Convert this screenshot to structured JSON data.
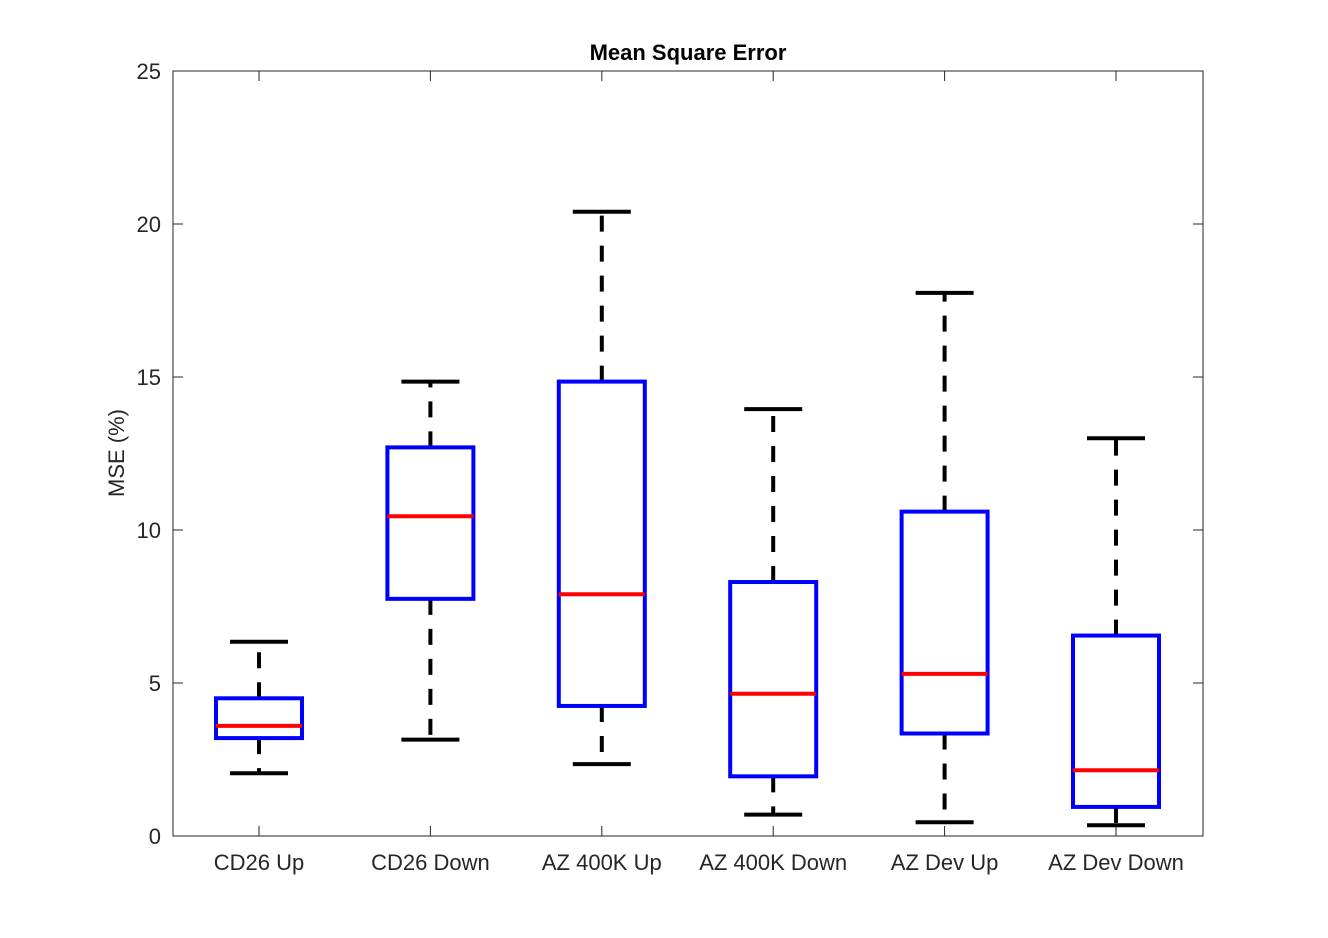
{
  "chart_data": {
    "type": "boxplot",
    "title": "Mean Square Error",
    "xlabel": "",
    "ylabel": "MSE (%)",
    "ylim": [
      0,
      25
    ],
    "yticks": [
      0,
      5,
      10,
      15,
      20,
      25
    ],
    "grid": false,
    "categories": [
      "CD26 Up",
      "CD26 Down",
      "AZ 400K Up",
      "AZ 400K Down",
      "AZ Dev Up",
      "AZ Dev Down"
    ],
    "boxes": [
      {
        "min": 2.05,
        "q1": 3.2,
        "median": 3.6,
        "q3": 4.5,
        "max": 6.35
      },
      {
        "min": 3.15,
        "q1": 7.75,
        "median": 10.45,
        "q3": 12.7,
        "max": 14.85
      },
      {
        "min": 2.35,
        "q1": 4.25,
        "median": 7.9,
        "q3": 14.85,
        "max": 20.4
      },
      {
        "min": 0.7,
        "q1": 1.95,
        "median": 4.65,
        "q3": 8.3,
        "max": 13.95
      },
      {
        "min": 0.45,
        "q1": 3.35,
        "median": 5.3,
        "q3": 10.6,
        "max": 17.75
      },
      {
        "min": 0.35,
        "q1": 0.95,
        "median": 2.15,
        "q3": 6.55,
        "max": 13.0
      }
    ],
    "colors": {
      "box": "#0000ff",
      "median": "#ff0000",
      "whisker": "#000000",
      "axis": "#262626"
    }
  }
}
